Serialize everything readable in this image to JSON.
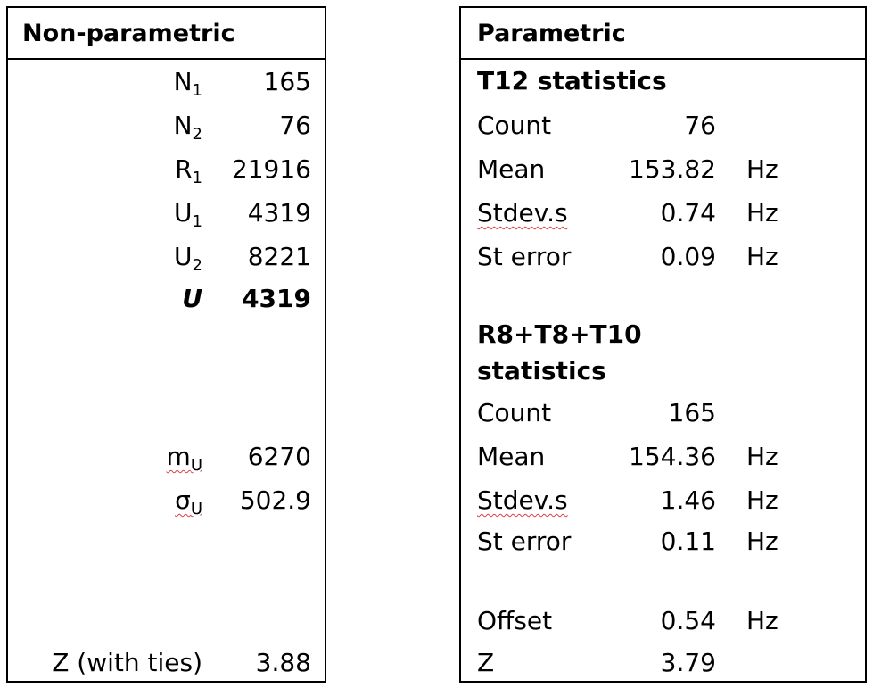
{
  "nonparametric": {
    "title": "Non-parametric",
    "n1": {
      "symbol": "N",
      "sub": "1",
      "value": "165"
    },
    "n2": {
      "symbol": "N",
      "sub": "2",
      "value": "76"
    },
    "r1": {
      "symbol": "R",
      "sub": "1",
      "value": "21916"
    },
    "u1": {
      "symbol": "U",
      "sub": "1",
      "value": "4319"
    },
    "u2": {
      "symbol": "U",
      "sub": "2",
      "value": "8221"
    },
    "u": {
      "symbol": "U",
      "value": "4319"
    },
    "mu": {
      "symbol": "m",
      "sub": "U",
      "value": "6270"
    },
    "sigma": {
      "symbol": "σ",
      "sub": "U",
      "value": "502.9"
    },
    "z": {
      "label": "Z (with ties)",
      "value": "3.88"
    }
  },
  "parametric": {
    "title": "Parametric",
    "t12": {
      "heading": "T12 statistics",
      "count": {
        "label": "Count",
        "value": "76"
      },
      "mean": {
        "label": "Mean",
        "value": "153.82",
        "unit": "Hz"
      },
      "stdev": {
        "label": "Stdev.s",
        "value": "0.74",
        "unit": "Hz"
      },
      "sterr": {
        "label": "St error",
        "value": "0.09",
        "unit": "Hz"
      }
    },
    "r8": {
      "heading_line1": "R8+T8+T10",
      "heading_line2": "statistics",
      "count": {
        "label": "Count",
        "value": "165"
      },
      "mean": {
        "label": "Mean",
        "value": "154.36",
        "unit": "Hz"
      },
      "stdev": {
        "label": "Stdev.s",
        "value": "1.46",
        "unit": "Hz"
      },
      "sterr": {
        "label": "St error",
        "value": "0.11",
        "unit": "Hz"
      }
    },
    "offset": {
      "label": "Offset",
      "value": "0.54",
      "unit": "Hz"
    },
    "z": {
      "label": "Z",
      "value": "3.79"
    }
  }
}
